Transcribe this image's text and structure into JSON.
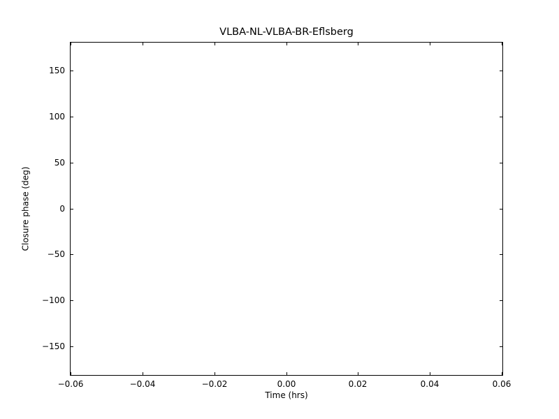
{
  "figure": {
    "background_color": "#ffffff",
    "frame_color": "#000000",
    "text_color": "#000000"
  },
  "chart_data": {
    "type": "scatter",
    "title": "VLBA-NL-VLBA-BR-Eflsberg",
    "xlabel": "Time (hrs)",
    "ylabel": "Closure phase (deg)",
    "xlim": [
      -0.06,
      0.06
    ],
    "ylim": [
      -180,
      180
    ],
    "xticks": [
      -0.06,
      -0.04,
      -0.02,
      0.0,
      0.02,
      0.04,
      0.06
    ],
    "xtick_labels": [
      "−0.06",
      "−0.04",
      "−0.02",
      "0.00",
      "0.02",
      "0.04",
      "0.06"
    ],
    "yticks": [
      -150,
      -100,
      -50,
      0,
      50,
      100,
      150
    ],
    "ytick_labels": [
      "−150",
      "−100",
      "−50",
      "0",
      "50",
      "100",
      "150"
    ],
    "series": [],
    "points": [],
    "grid": false,
    "legend": null,
    "tick_direction": "in"
  }
}
